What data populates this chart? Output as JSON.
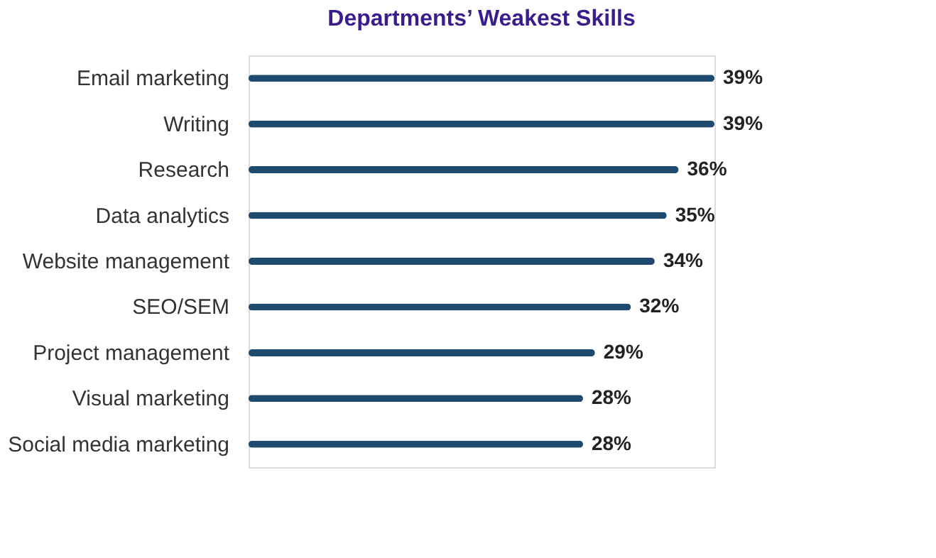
{
  "chart_data": {
    "type": "bar",
    "orientation": "horizontal",
    "title": "Departments’ Weakest Skills",
    "categories": [
      "Email marketing",
      "Writing",
      "Research",
      "Data analytics",
      "Website management",
      "SEO/SEM",
      "Project management",
      "Visual marketing",
      "Social media marketing"
    ],
    "values": [
      39,
      39,
      36,
      35,
      34,
      32,
      29,
      28,
      28
    ],
    "value_labels": [
      "39%",
      "39%",
      "36%",
      "35%",
      "34%",
      "32%",
      "29%",
      "28%",
      "28%"
    ],
    "color": "#1d4a6e",
    "tick_labels": "y"
  }
}
